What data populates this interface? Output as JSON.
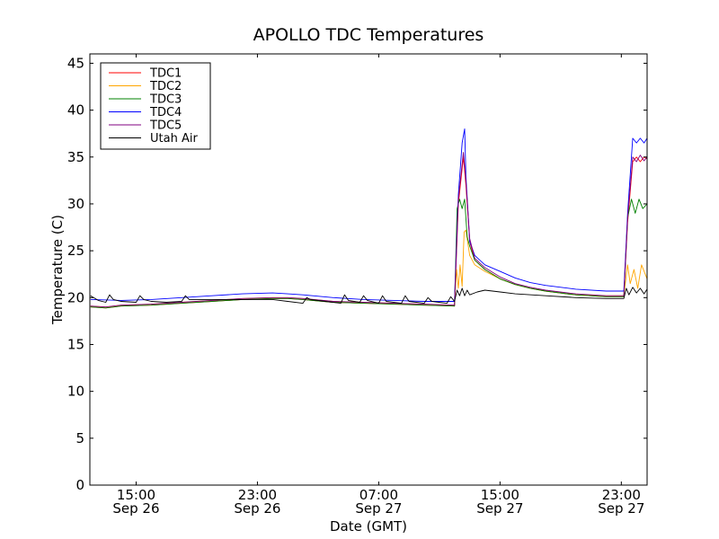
{
  "chart_data": {
    "type": "line",
    "title": "APOLLO TDC Temperatures",
    "xlabel": "Date (GMT)",
    "ylabel": "Temperature (C)",
    "x_unit": "hours_gmt",
    "xlim": [
      "Sep 26 11:57",
      "Sep 28 00:42"
    ],
    "ylim": [
      0,
      46
    ],
    "grid": false,
    "legend_position": "top-left",
    "y_ticks": [
      0,
      5,
      10,
      15,
      20,
      25,
      30,
      35,
      40,
      45
    ],
    "x_ticks": [
      {
        "x": "Sep 26 15:00",
        "time": "15:00",
        "date": "Sep 26"
      },
      {
        "x": "Sep 26 23:00",
        "time": "23:00",
        "date": "Sep 26"
      },
      {
        "x": "Sep 27 07:00",
        "time": "07:00",
        "date": "Sep 27"
      },
      {
        "x": "Sep 27 15:00",
        "time": "15:00",
        "date": "Sep 27"
      },
      {
        "x": "Sep 27 23:00",
        "time": "23:00",
        "date": "Sep 27"
      }
    ],
    "series": [
      {
        "name": "TDC1",
        "color": "#ff0000",
        "x": [
          "Sep 26 12:00",
          "Sep 26 13:00",
          "Sep 26 14:00",
          "Sep 26 16:00",
          "Sep 26 18:00",
          "Sep 26 20:00",
          "Sep 26 22:00",
          "Sep 27 00:00",
          "Sep 27 01:00",
          "Sep 27 02:00",
          "Sep 27 04:00",
          "Sep 27 06:00",
          "Sep 27 08:00",
          "Sep 27 10:00",
          "Sep 27 12:00",
          "Sep 27 12:15",
          "Sep 27 12:35",
          "Sep 27 12:45",
          "Sep 27 13:00",
          "Sep 27 13:20",
          "Sep 27 14:00",
          "Sep 27 15:00",
          "Sep 27 16:00",
          "Sep 27 17:00",
          "Sep 27 18:00",
          "Sep 27 20:00",
          "Sep 27 22:00",
          "Sep 27 23:10",
          "Sep 27 23:25",
          "Sep 27 23:45",
          "Sep 28 00:00",
          "Sep 28 00:15",
          "Sep 28 00:30",
          "Sep 28 00:42"
        ],
        "y": [
          19.0,
          18.9,
          19.1,
          19.2,
          19.4,
          19.6,
          19.8,
          19.9,
          19.9,
          19.8,
          19.5,
          19.4,
          19.3,
          19.2,
          19.1,
          30.0,
          35.0,
          32.0,
          26.0,
          24.0,
          23.0,
          22.0,
          21.4,
          21.0,
          20.7,
          20.3,
          20.1,
          20.1,
          28.0,
          34.5,
          35.0,
          34.5,
          35.0,
          34.8
        ]
      },
      {
        "name": "TDC2",
        "color": "#ffa500",
        "x": [
          "Sep 26 12:00",
          "Sep 26 13:00",
          "Sep 26 14:00",
          "Sep 26 16:00",
          "Sep 26 18:00",
          "Sep 26 20:00",
          "Sep 26 22:00",
          "Sep 27 00:00",
          "Sep 27 01:00",
          "Sep 27 02:00",
          "Sep 27 04:00",
          "Sep 27 06:00",
          "Sep 27 08:00",
          "Sep 27 10:00",
          "Sep 27 12:00",
          "Sep 27 12:08",
          "Sep 27 12:15",
          "Sep 27 12:22",
          "Sep 27 12:30",
          "Sep 27 12:38",
          "Sep 27 12:45",
          "Sep 27 13:00",
          "Sep 27 13:20",
          "Sep 27 14:00",
          "Sep 27 15:00",
          "Sep 27 16:00",
          "Sep 27 17:00",
          "Sep 27 18:00",
          "Sep 27 20:00",
          "Sep 27 22:00",
          "Sep 27 23:10",
          "Sep 27 23:25",
          "Sep 27 23:35",
          "Sep 27 23:50",
          "Sep 28 00:05",
          "Sep 28 00:20",
          "Sep 28 00:42"
        ],
        "y": [
          19.1,
          19.0,
          19.2,
          19.3,
          19.5,
          19.7,
          19.9,
          20.0,
          20.0,
          19.9,
          19.6,
          19.5,
          19.4,
          19.3,
          19.2,
          23.0,
          21.0,
          23.5,
          21.2,
          27.0,
          27.2,
          24.5,
          23.5,
          22.8,
          22.0,
          21.4,
          21.0,
          20.7,
          20.3,
          20.2,
          20.2,
          23.5,
          21.5,
          23.0,
          21.0,
          23.5,
          22.0
        ]
      },
      {
        "name": "TDC3",
        "color": "#008000",
        "x": [
          "Sep 26 12:00",
          "Sep 26 13:00",
          "Sep 26 14:00",
          "Sep 26 16:00",
          "Sep 26 18:00",
          "Sep 26 20:00",
          "Sep 26 22:00",
          "Sep 27 00:00",
          "Sep 27 01:00",
          "Sep 27 02:00",
          "Sep 27 04:00",
          "Sep 27 06:00",
          "Sep 27 08:00",
          "Sep 27 10:00",
          "Sep 27 12:00",
          "Sep 27 12:10",
          "Sep 27 12:20",
          "Sep 27 12:30",
          "Sep 27 12:40",
          "Sep 27 12:50",
          "Sep 27 13:00",
          "Sep 27 13:20",
          "Sep 27 14:00",
          "Sep 27 15:00",
          "Sep 27 16:00",
          "Sep 27 17:00",
          "Sep 27 18:00",
          "Sep 27 20:00",
          "Sep 27 22:00",
          "Sep 27 23:10",
          "Sep 27 23:25",
          "Sep 27 23:40",
          "Sep 27 23:55",
          "Sep 28 00:10",
          "Sep 28 00:25",
          "Sep 28 00:42"
        ],
        "y": [
          19.0,
          18.9,
          19.1,
          19.2,
          19.4,
          19.6,
          19.8,
          19.9,
          19.9,
          19.8,
          19.5,
          19.4,
          19.3,
          19.2,
          19.1,
          29.5,
          30.5,
          29.5,
          30.5,
          26.5,
          25.5,
          24.0,
          23.0,
          22.0,
          21.4,
          21.0,
          20.7,
          20.3,
          20.1,
          20.1,
          28.5,
          30.5,
          29.0,
          30.5,
          29.5,
          30.0
        ]
      },
      {
        "name": "TDC4",
        "color": "#0000ff",
        "x": [
          "Sep 26 12:00",
          "Sep 26 14:00",
          "Sep 26 16:00",
          "Sep 26 18:00",
          "Sep 26 20:00",
          "Sep 26 22:00",
          "Sep 27 00:00",
          "Sep 27 01:00",
          "Sep 27 02:00",
          "Sep 27 04:00",
          "Sep 27 06:00",
          "Sep 27 08:00",
          "Sep 27 10:00",
          "Sep 27 12:00",
          "Sep 27 12:15",
          "Sep 27 12:30",
          "Sep 27 12:40",
          "Sep 27 12:45",
          "Sep 27 13:00",
          "Sep 27 13:20",
          "Sep 27 14:00",
          "Sep 27 15:00",
          "Sep 27 16:00",
          "Sep 27 17:00",
          "Sep 27 18:00",
          "Sep 27 20:00",
          "Sep 27 22:00",
          "Sep 27 23:10",
          "Sep 27 23:25",
          "Sep 27 23:45",
          "Sep 28 00:00",
          "Sep 28 00:15",
          "Sep 28 00:30",
          "Sep 28 00:42"
        ],
        "y": [
          19.8,
          19.7,
          19.8,
          20.0,
          20.2,
          20.4,
          20.5,
          20.4,
          20.3,
          20.0,
          19.8,
          19.7,
          19.6,
          19.6,
          31.0,
          36.5,
          38.0,
          33.0,
          26.0,
          24.5,
          23.5,
          22.8,
          22.1,
          21.6,
          21.3,
          20.9,
          20.7,
          20.7,
          29.0,
          37.0,
          36.5,
          37.0,
          36.5,
          37.0
        ]
      },
      {
        "name": "TDC5",
        "color": "#800080",
        "x": [
          "Sep 26 12:00",
          "Sep 26 13:00",
          "Sep 26 14:00",
          "Sep 26 16:00",
          "Sep 26 18:00",
          "Sep 26 20:00",
          "Sep 26 22:00",
          "Sep 27 00:00",
          "Sep 27 01:00",
          "Sep 27 02:00",
          "Sep 27 04:00",
          "Sep 27 06:00",
          "Sep 27 08:00",
          "Sep 27 10:00",
          "Sep 27 12:00",
          "Sep 27 12:15",
          "Sep 27 12:35",
          "Sep 27 12:45",
          "Sep 27 13:00",
          "Sep 27 13:20",
          "Sep 27 14:00",
          "Sep 27 15:00",
          "Sep 27 16:00",
          "Sep 27 17:00",
          "Sep 27 18:00",
          "Sep 27 20:00",
          "Sep 27 22:00",
          "Sep 27 23:10",
          "Sep 27 23:25",
          "Sep 27 23:45",
          "Sep 28 00:00",
          "Sep 28 00:15",
          "Sep 28 00:30",
          "Sep 28 00:42"
        ],
        "y": [
          19.1,
          19.0,
          19.2,
          19.3,
          19.5,
          19.7,
          19.9,
          20.0,
          20.0,
          19.9,
          19.6,
          19.5,
          19.4,
          19.3,
          19.2,
          30.5,
          35.5,
          32.5,
          26.3,
          24.2,
          23.2,
          22.2,
          21.5,
          21.1,
          20.8,
          20.4,
          20.2,
          20.2,
          28.5,
          35.0,
          34.5,
          35.2,
          34.6,
          35.0
        ]
      },
      {
        "name": "Utah Air",
        "color": "#000000",
        "x": [
          "Sep 26 12:00",
          "Sep 26 12:30",
          "Sep 26 13:00",
          "Sep 26 13:15",
          "Sep 26 13:30",
          "Sep 26 14:00",
          "Sep 26 15:00",
          "Sep 26 15:15",
          "Sep 26 15:30",
          "Sep 26 16:00",
          "Sep 26 17:00",
          "Sep 26 18:00",
          "Sep 26 18:15",
          "Sep 26 18:30",
          "Sep 26 20:00",
          "Sep 26 22:00",
          "Sep 27 00:00",
          "Sep 27 01:00",
          "Sep 27 02:00",
          "Sep 27 02:15",
          "Sep 27 02:30",
          "Sep 27 03:30",
          "Sep 27 04:30",
          "Sep 27 04:45",
          "Sep 27 05:00",
          "Sep 27 05:45",
          "Sep 27 06:00",
          "Sep 27 06:15",
          "Sep 27 07:00",
          "Sep 27 07:15",
          "Sep 27 07:30",
          "Sep 27 08:30",
          "Sep 27 08:45",
          "Sep 27 09:00",
          "Sep 27 10:00",
          "Sep 27 10:15",
          "Sep 27 10:30",
          "Sep 27 11:30",
          "Sep 27 11:45",
          "Sep 27 12:00",
          "Sep 27 12:10",
          "Sep 27 12:20",
          "Sep 27 12:30",
          "Sep 27 12:40",
          "Sep 27 12:50",
          "Sep 27 13:00",
          "Sep 27 13:30",
          "Sep 27 14:00",
          "Sep 27 15:00",
          "Sep 27 16:00",
          "Sep 27 18:00",
          "Sep 27 20:00",
          "Sep 27 22:00",
          "Sep 27 23:10",
          "Sep 27 23:20",
          "Sep 27 23:30",
          "Sep 27 23:45",
          "Sep 28 00:00",
          "Sep 28 00:15",
          "Sep 28 00:30",
          "Sep 28 00:42"
        ],
        "y": [
          20.2,
          19.7,
          19.5,
          20.3,
          19.8,
          19.6,
          19.5,
          20.2,
          19.8,
          19.6,
          19.5,
          19.6,
          20.2,
          19.8,
          19.8,
          19.8,
          19.8,
          19.6,
          19.4,
          20.0,
          19.8,
          19.6,
          19.4,
          20.3,
          19.7,
          19.5,
          20.2,
          19.7,
          19.4,
          20.2,
          19.6,
          19.4,
          20.2,
          19.6,
          19.4,
          20.0,
          19.6,
          19.4,
          20.1,
          19.6,
          20.8,
          20.2,
          21.0,
          20.2,
          20.8,
          20.3,
          20.6,
          20.8,
          20.6,
          20.4,
          20.2,
          20.0,
          19.9,
          19.9,
          21.0,
          20.3,
          21.1,
          20.5,
          21.0,
          20.4,
          20.9
        ]
      }
    ]
  }
}
